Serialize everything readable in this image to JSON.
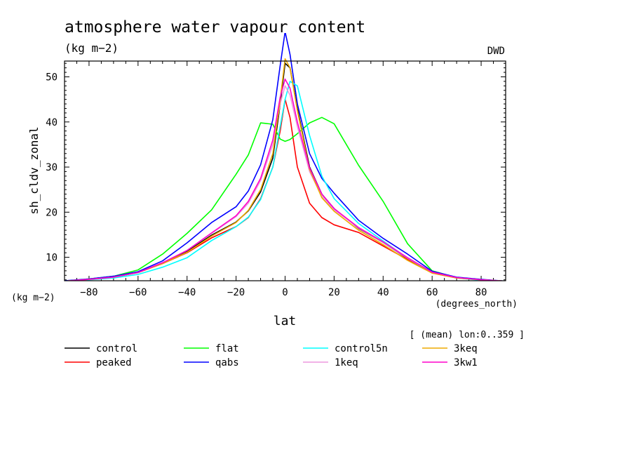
{
  "chart_data": {
    "type": "line",
    "title": "atmosphere water vapour content",
    "subtitle": "(kg m−2)",
    "source_tag": "DWD",
    "ylabel": "sh_cldv_zonal",
    "yunit": "(kg m−2)",
    "xlabel": "lat",
    "xunit": "(degrees_north)",
    "note": "[ (mean) lon:0..359 ]",
    "xlim": [
      -90,
      90
    ],
    "ylim": [
      4.8,
      53.5
    ],
    "xticks": [
      -80,
      -60,
      -40,
      -20,
      0,
      20,
      40,
      60,
      80
    ],
    "yticks": [
      10,
      20,
      30,
      40,
      50
    ],
    "x": [
      -90,
      -80,
      -70,
      -60,
      -50,
      -40,
      -30,
      -20,
      -15,
      -10,
      -5,
      -2,
      0,
      2,
      5,
      10,
      15,
      20,
      30,
      40,
      50,
      60,
      70,
      80,
      90
    ],
    "series": [
      {
        "name": "control",
        "color": "#000000",
        "values": [
          4.7,
          5.1,
          5.6,
          6.6,
          8.7,
          11.3,
          14.9,
          17.8,
          20.3,
          24.5,
          32.0,
          44.0,
          53.0,
          52.0,
          43.0,
          30.0,
          24.0,
          20.8,
          16.4,
          13.3,
          9.7,
          6.6,
          5.5,
          5.0,
          4.7
        ]
      },
      {
        "name": "peaked",
        "color": "#ff0000",
        "values": [
          4.7,
          5.1,
          5.6,
          6.6,
          8.6,
          11.0,
          14.3,
          16.8,
          18.8,
          23.0,
          30.0,
          38.0,
          45.0,
          41.0,
          30.0,
          22.0,
          18.8,
          17.2,
          15.5,
          12.5,
          9.5,
          6.5,
          5.4,
          5.0,
          4.7
        ]
      },
      {
        "name": "flat",
        "color": "#00ff00",
        "values": [
          4.7,
          5.2,
          5.8,
          7.2,
          10.7,
          15.3,
          20.5,
          28.4,
          32.7,
          39.8,
          39.5,
          36.2,
          35.7,
          36.1,
          37.4,
          39.8,
          41.0,
          39.6,
          30.4,
          22.4,
          13.0,
          7.0,
          5.5,
          5.0,
          4.7
        ]
      },
      {
        "name": "qabs",
        "color": "#0000ff",
        "values": [
          4.8,
          5.2,
          5.8,
          6.8,
          9.2,
          13.2,
          17.7,
          21.2,
          24.7,
          30.5,
          40.5,
          52.5,
          60.0,
          55.0,
          44.0,
          33.0,
          27.5,
          24.2,
          18.2,
          14.2,
          10.7,
          6.9,
          5.6,
          5.1,
          4.7
        ]
      },
      {
        "name": "control5n",
        "color": "#00ffff",
        "values": [
          4.6,
          5.0,
          5.4,
          6.2,
          7.8,
          9.9,
          13.7,
          16.8,
          18.9,
          22.8,
          30.0,
          39.0,
          45.0,
          49.0,
          48.0,
          37.0,
          28.0,
          23.0,
          17.5,
          13.6,
          9.8,
          6.6,
          5.4,
          4.9,
          4.6
        ]
      },
      {
        "name": "1keq",
        "color": "#ee99dd",
        "values": [
          4.7,
          5.1,
          5.6,
          6.6,
          8.8,
          11.5,
          15.3,
          19.0,
          22.0,
          27.0,
          35.0,
          44.0,
          48.0,
          46.0,
          39.0,
          29.0,
          23.5,
          20.5,
          16.5,
          13.3,
          9.8,
          6.7,
          5.5,
          5.0,
          4.7
        ]
      },
      {
        "name": "3keq",
        "color": "#eeaa00",
        "values": [
          4.7,
          5.1,
          5.6,
          6.6,
          8.6,
          11.1,
          14.7,
          17.7,
          20.4,
          25.0,
          33.0,
          45.0,
          54.0,
          52.0,
          42.5,
          29.5,
          23.2,
          20.2,
          16.0,
          12.8,
          9.3,
          6.5,
          5.4,
          5.0,
          4.7
        ]
      },
      {
        "name": "3kw1",
        "color": "#ff00cc",
        "values": [
          4.7,
          5.1,
          5.6,
          6.6,
          8.8,
          11.5,
          15.4,
          19.2,
          22.4,
          27.5,
          36.0,
          45.5,
          49.5,
          47.5,
          40.0,
          29.8,
          24.0,
          20.8,
          16.6,
          13.4,
          9.9,
          6.7,
          5.5,
          5.0,
          4.7
        ]
      }
    ]
  }
}
